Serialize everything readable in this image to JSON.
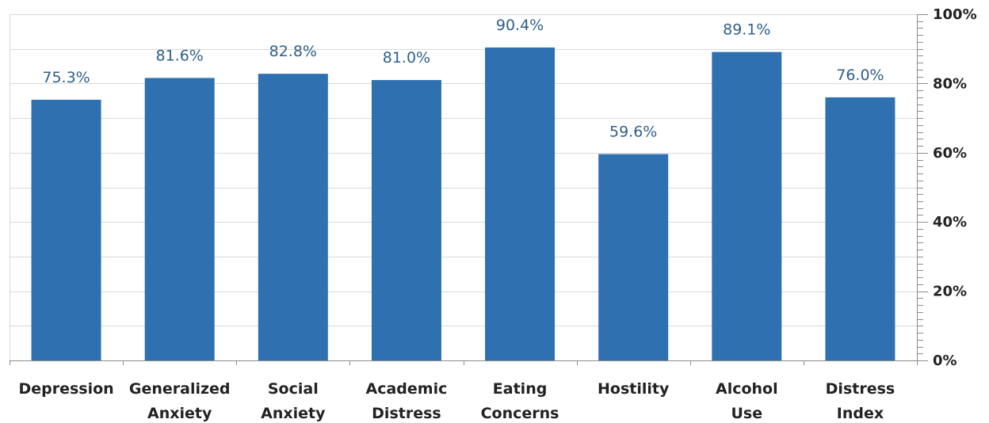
{
  "chart_data": {
    "type": "bar",
    "title": "",
    "xlabel": "",
    "ylabel": "",
    "categories": [
      [
        "Depression"
      ],
      [
        "Generalized",
        "Anxiety"
      ],
      [
        "Social",
        "Anxiety"
      ],
      [
        "Academic",
        "Distress"
      ],
      [
        "Eating",
        "Concerns"
      ],
      [
        "Hostility"
      ],
      [
        "Alcohol",
        "Use"
      ],
      [
        "Distress",
        "Index"
      ]
    ],
    "values": [
      75.3,
      81.6,
      82.8,
      81.0,
      90.4,
      59.6,
      89.1,
      76.0
    ],
    "data_labels": [
      "75.3%",
      "81.6%",
      "82.8%",
      "81.0%",
      "90.4%",
      "59.6%",
      "89.1%",
      "76.0%"
    ],
    "ylim": [
      0,
      100
    ],
    "y_ticks": [
      0,
      20,
      40,
      60,
      80,
      100
    ],
    "y_tick_labels": [
      "0%",
      "20%",
      "40%",
      "60%",
      "80%",
      "100%"
    ],
    "y_axis_side": "right",
    "grid": true,
    "legend": "none",
    "bar_color": "#2e70b0",
    "label_color": "#2f5f8a"
  }
}
